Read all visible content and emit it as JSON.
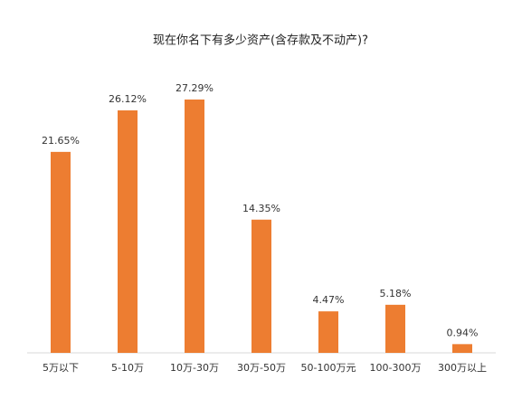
{
  "chart_data": {
    "type": "bar",
    "title": "现在你名下有多少资产(含存款及不动产)?",
    "categories": [
      "5万以下",
      "5-10万",
      "10万-30万",
      "30万-50万",
      "50-100万元",
      "100-300万",
      "300万以上"
    ],
    "values": [
      21.65,
      26.12,
      27.29,
      14.35,
      4.47,
      5.18,
      0.94
    ],
    "value_labels": [
      "21.65%",
      "26.12%",
      "27.29%",
      "14.35%",
      "4.47%",
      "5.18%",
      "0.94%"
    ],
    "color": "#ed7d31"
  }
}
